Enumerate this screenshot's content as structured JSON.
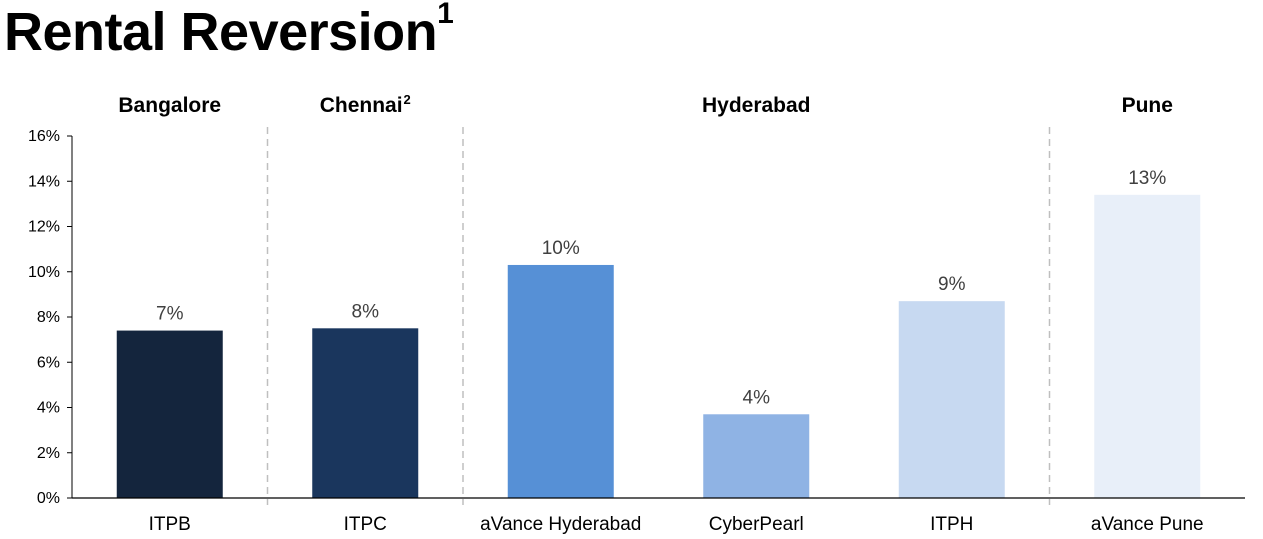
{
  "title": "Rental Reversion",
  "title_sup": "1",
  "chart_data": {
    "type": "bar",
    "title": "Rental Reversion",
    "xlabel": "",
    "ylabel": "",
    "ylim": [
      0,
      16
    ],
    "y_ticks": [
      "0%",
      "2%",
      "4%",
      "6%",
      "8%",
      "10%",
      "12%",
      "14%",
      "16%"
    ],
    "categories": [
      "ITPB",
      "ITPC",
      "aVance Hyderabad",
      "CyberPearl",
      "ITPH",
      "aVance Pune"
    ],
    "values": [
      7.4,
      7.5,
      10.3,
      3.7,
      8.7,
      13.4
    ],
    "data_labels": [
      "7%",
      "8%",
      "10%",
      "4%",
      "9%",
      "13%"
    ],
    "bar_colors": [
      "#14253d",
      "#1a365d",
      "#5690d6",
      "#8fb3e4",
      "#c7d9f1",
      "#e8eff9"
    ],
    "groups": [
      {
        "name": "Bangalore",
        "sup": "",
        "start": 0,
        "end": 0
      },
      {
        "name": "Chennai",
        "sup": "2",
        "start": 1,
        "end": 1
      },
      {
        "name": "Hyderabad",
        "sup": "",
        "start": 2,
        "end": 4
      },
      {
        "name": "Pune",
        "sup": "",
        "start": 5,
        "end": 5
      }
    ],
    "grid": false
  }
}
